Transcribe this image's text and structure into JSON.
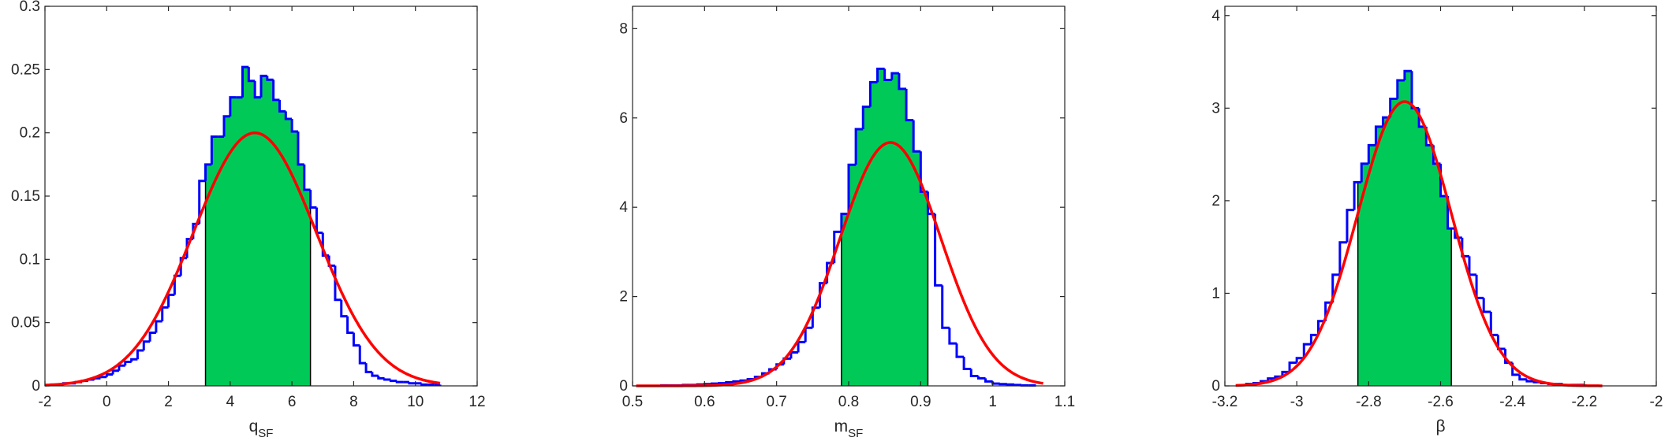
{
  "colors": {
    "hist_line": "#0000ff",
    "hist_fill": "#00c957",
    "fit_line": "#ff0000",
    "axes": "#262626",
    "interval_edge": "#000000"
  },
  "chart_data": [
    {
      "type": "histogram",
      "xlabel": {
        "main": "q",
        "sub": "SF"
      },
      "xlim": [
        -2,
        12
      ],
      "ylim": [
        0,
        0.3
      ],
      "xticks": [
        -2,
        0,
        2,
        4,
        6,
        8,
        10,
        12
      ],
      "yticks": [
        0,
        0.05,
        0.1,
        0.15,
        0.2,
        0.25,
        0.3
      ],
      "xtick_labels": [
        "-2",
        "0",
        "2",
        "4",
        "6",
        "8",
        "10",
        "12"
      ],
      "ytick_labels": [
        "0",
        "0.05",
        "0.1",
        "0.15",
        "0.2",
        "0.25",
        "0.3"
      ],
      "bin_edges": [
        -1.8,
        -1.6,
        -1.4,
        -1.2,
        -1.0,
        -0.8,
        -0.6,
        -0.4,
        -0.2,
        0.0,
        0.2,
        0.4,
        0.6,
        0.8,
        1.0,
        1.2,
        1.4,
        1.6,
        1.8,
        2.0,
        2.2,
        2.4,
        2.6,
        2.8,
        3.0,
        3.2,
        3.4,
        3.6,
        3.8,
        4.0,
        4.2,
        4.4,
        4.6,
        4.8,
        5.0,
        5.2,
        5.4,
        5.6,
        5.8,
        6.0,
        6.2,
        6.4,
        6.6,
        6.8,
        7.0,
        7.2,
        7.4,
        7.6,
        7.8,
        8.0,
        8.2,
        8.4,
        8.6,
        8.8,
        9.0,
        9.2,
        9.4,
        9.6,
        9.8,
        10.0,
        10.2,
        10.4,
        10.6,
        10.8
      ],
      "bin_values": [
        0.001,
        0.001,
        0.002,
        0.002,
        0.003,
        0.004,
        0.005,
        0.006,
        0.007,
        0.009,
        0.012,
        0.016,
        0.019,
        0.021,
        0.028,
        0.035,
        0.042,
        0.051,
        0.062,
        0.072,
        0.087,
        0.101,
        0.116,
        0.128,
        0.162,
        0.175,
        0.197,
        0.197,
        0.213,
        0.228,
        0.228,
        0.252,
        0.241,
        0.228,
        0.245,
        0.242,
        0.226,
        0.217,
        0.211,
        0.201,
        0.175,
        0.155,
        0.141,
        0.121,
        0.103,
        0.095,
        0.068,
        0.055,
        0.042,
        0.032,
        0.018,
        0.011,
        0.008,
        0.006,
        0.005,
        0.004,
        0.003,
        0.003,
        0.002,
        0.002,
        0.001,
        0.001,
        0.001
      ],
      "interval": [
        3.2,
        6.6
      ],
      "fit": {
        "type": "gaussian",
        "mean": 4.8,
        "sigma": 1.99,
        "amplitude": 0.2,
        "x_range": [
          -2,
          10.8
        ]
      }
    },
    {
      "type": "histogram",
      "xlabel": {
        "main": "m",
        "sub": "SF"
      },
      "xlim": [
        0.5,
        1.1
      ],
      "ylim": [
        0,
        8.5
      ],
      "xticks": [
        0.5,
        0.6,
        0.7,
        0.8,
        0.9,
        1.0,
        1.1
      ],
      "yticks": [
        0,
        2,
        4,
        6,
        8
      ],
      "xtick_labels": [
        "0.5",
        "0.6",
        "0.7",
        "0.8",
        "0.9",
        "1",
        "1.1"
      ],
      "ytick_labels": [
        "0",
        "2",
        "4",
        "6",
        "8"
      ],
      "bin_edges": [
        0.54,
        0.55,
        0.56,
        0.57,
        0.58,
        0.59,
        0.6,
        0.61,
        0.62,
        0.63,
        0.64,
        0.65,
        0.66,
        0.67,
        0.68,
        0.69,
        0.7,
        0.71,
        0.72,
        0.73,
        0.74,
        0.75,
        0.76,
        0.77,
        0.78,
        0.79,
        0.8,
        0.81,
        0.82,
        0.83,
        0.84,
        0.85,
        0.86,
        0.87,
        0.88,
        0.89,
        0.9,
        0.91,
        0.92,
        0.93,
        0.94,
        0.95,
        0.96,
        0.97,
        0.98,
        0.99,
        1.0,
        1.01,
        1.02,
        1.03,
        1.04,
        1.05,
        1.06
      ],
      "bin_values": [
        0.01,
        0.01,
        0.01,
        0.02,
        0.02,
        0.03,
        0.04,
        0.05,
        0.06,
        0.08,
        0.1,
        0.12,
        0.15,
        0.2,
        0.28,
        0.37,
        0.48,
        0.61,
        0.75,
        0.98,
        1.3,
        1.75,
        2.3,
        2.75,
        3.45,
        3.85,
        4.95,
        5.75,
        6.25,
        6.8,
        7.1,
        6.85,
        7.0,
        6.65,
        5.95,
        5.25,
        4.35,
        3.85,
        2.25,
        1.3,
        0.95,
        0.65,
        0.38,
        0.22,
        0.17,
        0.1,
        0.05,
        0.04,
        0.03,
        0.02,
        0.01,
        0.01
      ],
      "interval": [
        0.79,
        0.91
      ],
      "fit": {
        "type": "gaussian",
        "mean": 0.858,
        "sigma": 0.07,
        "amplitude": 5.45,
        "x_range": [
          0.505,
          1.07
        ]
      }
    },
    {
      "type": "histogram",
      "xlabel": {
        "main": "β",
        "sub": ""
      },
      "xlim": [
        -3.2,
        -2.0
      ],
      "ylim": [
        0,
        4.1
      ],
      "xticks": [
        -3.2,
        -3.0,
        -2.8,
        -2.6,
        -2.4,
        -2.2,
        -2.0
      ],
      "yticks": [
        0,
        1,
        2,
        3,
        4
      ],
      "xtick_labels": [
        "-3.2",
        "-3",
        "-2.8",
        "-2.6",
        "-2.4",
        "-2.2",
        "-2"
      ],
      "ytick_labels": [
        "0",
        "1",
        "2",
        "3",
        "4"
      ],
      "bin_edges": [
        -3.14,
        -3.12,
        -3.1,
        -3.08,
        -3.06,
        -3.04,
        -3.02,
        -3.0,
        -2.98,
        -2.96,
        -2.94,
        -2.92,
        -2.9,
        -2.88,
        -2.86,
        -2.84,
        -2.82,
        -2.8,
        -2.78,
        -2.76,
        -2.74,
        -2.72,
        -2.7,
        -2.68,
        -2.66,
        -2.64,
        -2.62,
        -2.6,
        -2.58,
        -2.56,
        -2.54,
        -2.52,
        -2.5,
        -2.48,
        -2.46,
        -2.44,
        -2.42,
        -2.4,
        -2.38,
        -2.36,
        -2.34,
        -2.32,
        -2.3,
        -2.28,
        -2.26,
        -2.24,
        -2.22,
        -2.2
      ],
      "bin_values": [
        0.02,
        0.03,
        0.05,
        0.08,
        0.1,
        0.15,
        0.25,
        0.3,
        0.45,
        0.55,
        0.7,
        0.9,
        1.2,
        1.55,
        1.9,
        2.2,
        2.4,
        2.6,
        2.8,
        2.9,
        3.1,
        3.3,
        3.4,
        3.0,
        2.8,
        2.6,
        2.4,
        2.05,
        1.7,
        1.6,
        1.4,
        1.2,
        0.95,
        0.8,
        0.55,
        0.4,
        0.25,
        0.12,
        0.07,
        0.05,
        0.04,
        0.03,
        0.02,
        0.02,
        0.01,
        0.01,
        0.01
      ],
      "interval": [
        -2.83,
        -2.57
      ],
      "fit": {
        "type": "gaussian",
        "mean": -2.7,
        "sigma": 0.13,
        "amplitude": 3.07,
        "x_range": [
          -3.17,
          -2.15
        ]
      }
    }
  ]
}
